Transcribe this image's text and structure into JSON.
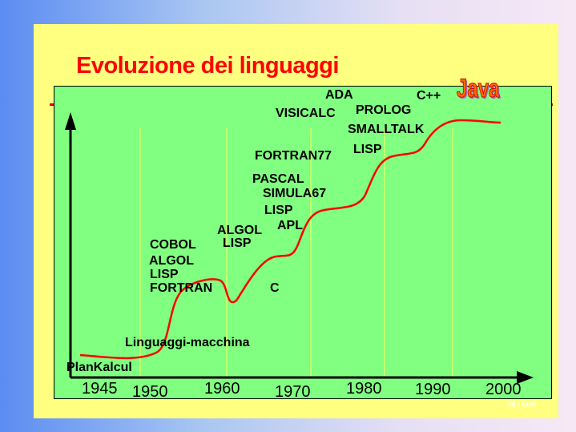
{
  "title": "Evoluzione dei linguaggi",
  "years": [
    "1945",
    "1950",
    "1960",
    "1970",
    "1980",
    "1990",
    "2000"
  ],
  "labels": [
    "PlanKalcul",
    "Linguaggi-macchina",
    "COBOL",
    "ALGOL",
    "LISP",
    "FORTRAN",
    "ALGOL",
    "LISP",
    "APL",
    "C",
    "PASCAL",
    "SIMULA67",
    "LISP",
    "FORTRAN77",
    "LISP",
    "VISICALC",
    "PROLOG",
    "SMALLTALK",
    "ADA",
    "C++"
  ],
  "java_logo": "Java",
  "footer": "AB - 1995",
  "colors": {
    "panel": "#ffff80",
    "plot": "#80ff80",
    "curve": "#ff0000",
    "title": "#ff0000"
  }
}
